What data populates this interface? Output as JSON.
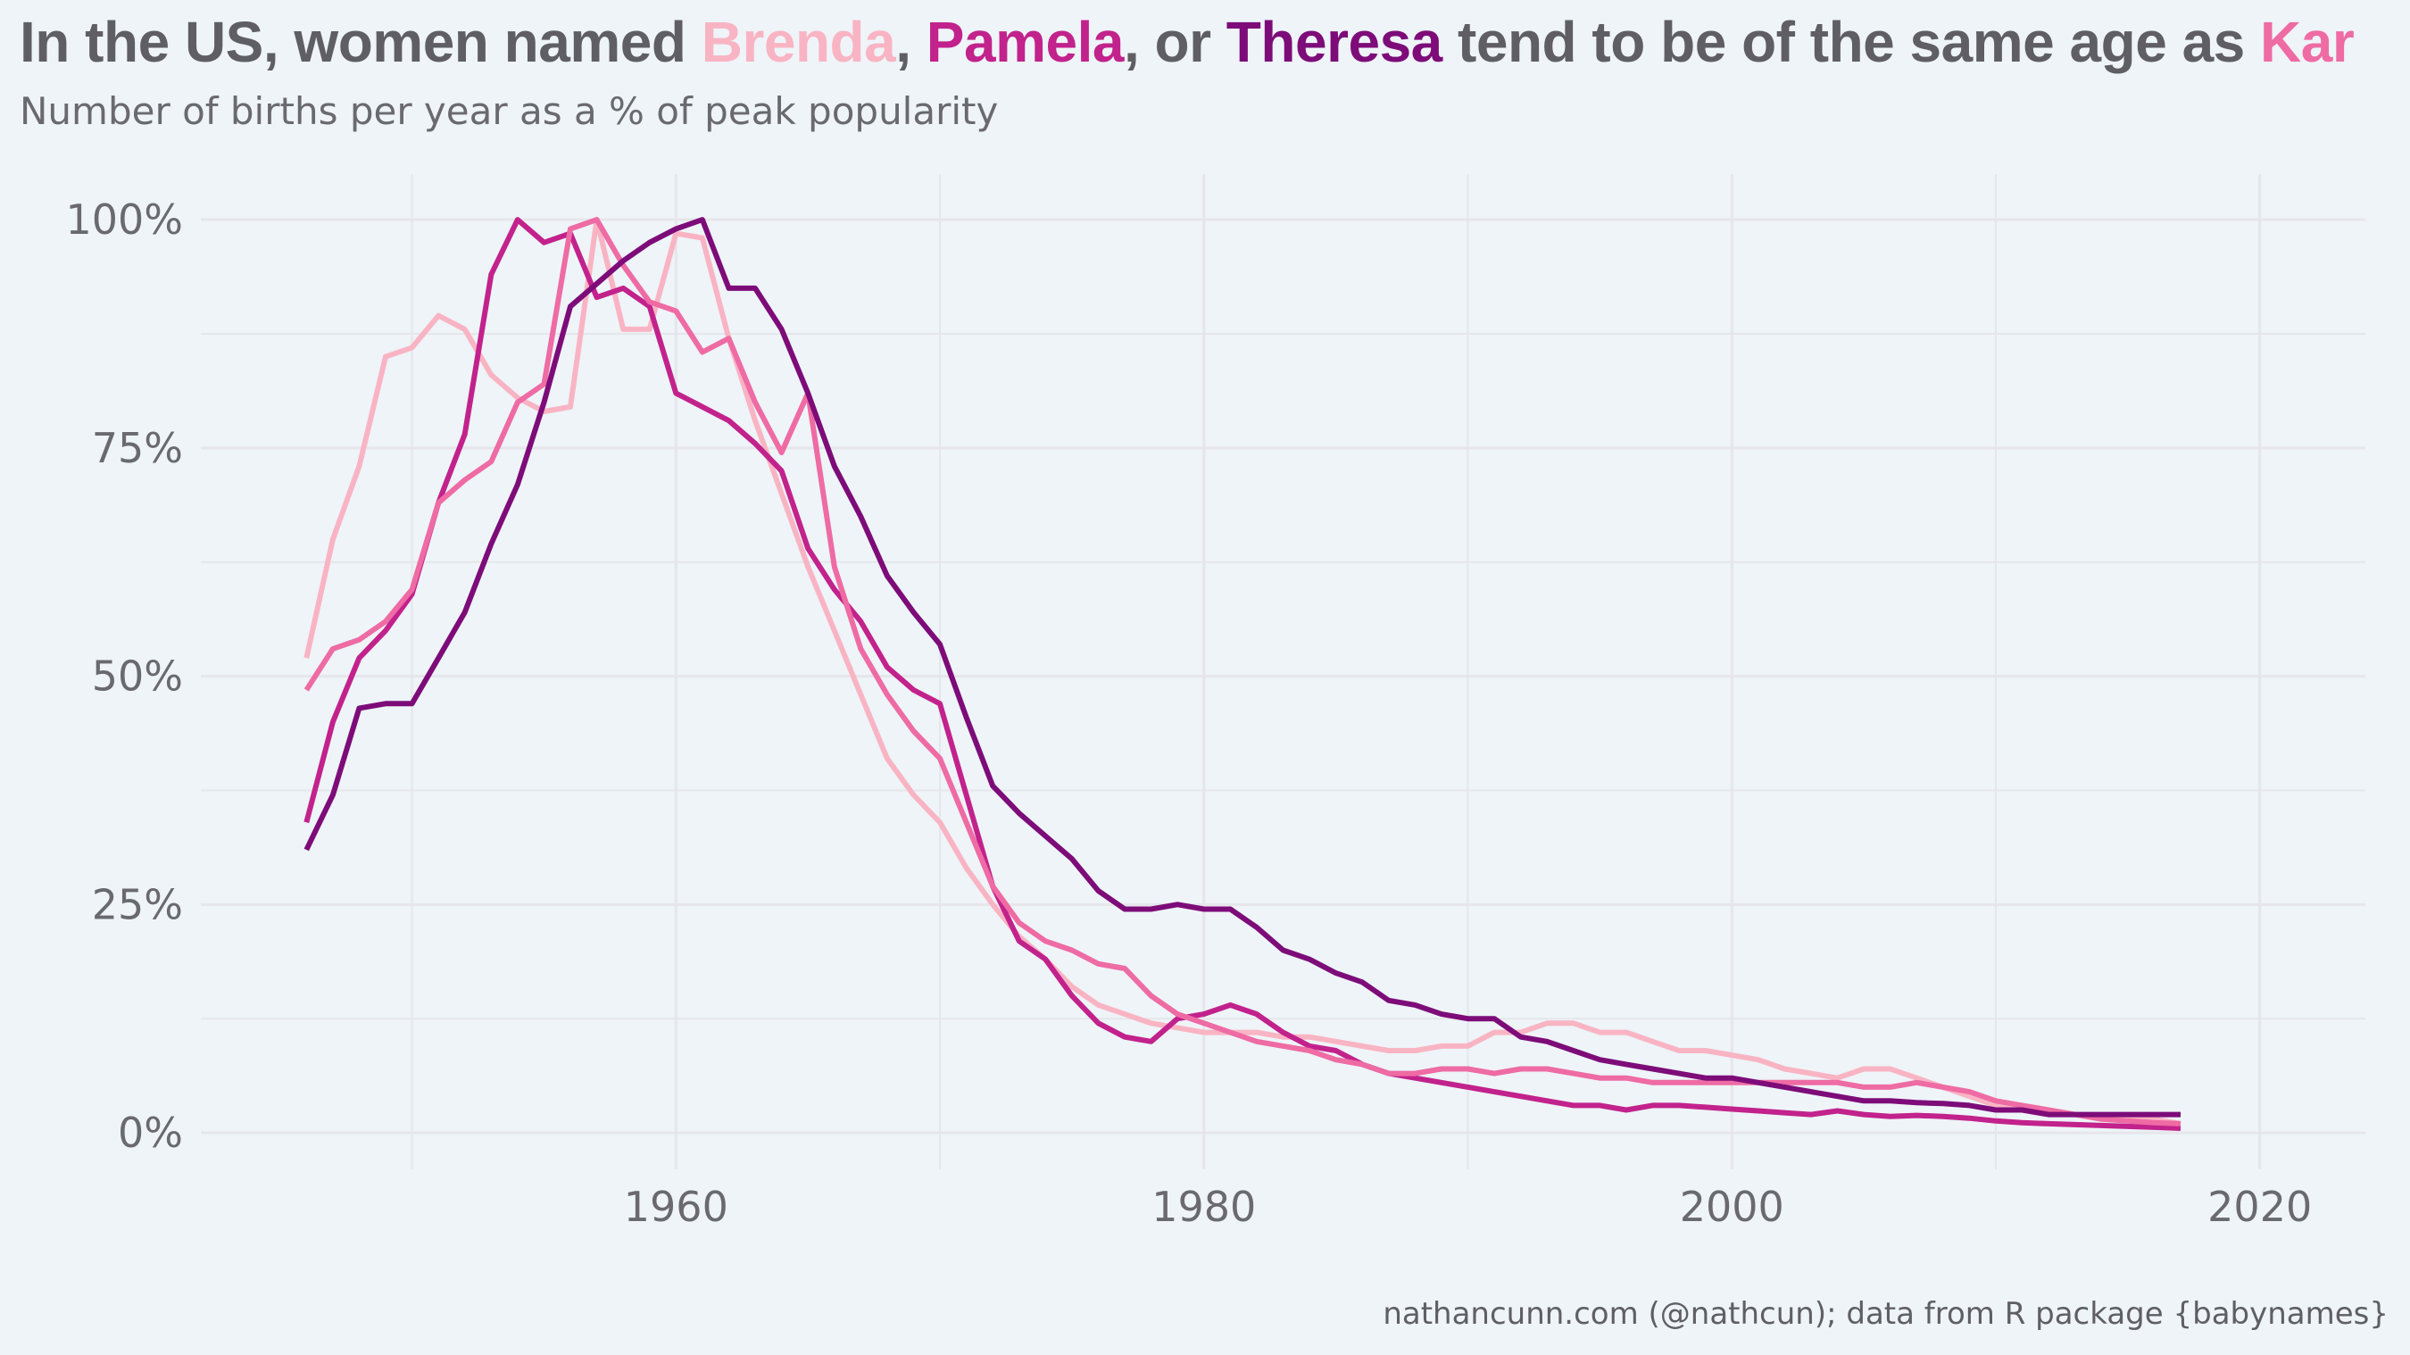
{
  "title": {
    "prefix": "In the US, women named ",
    "name1": "Brenda",
    "sep1": ", ",
    "name2": "Pamela",
    "sep2": ", or ",
    "name3": "Theresa",
    "middle": " tend to be of the same age as ",
    "name4": "Kar"
  },
  "subtitle": "Number of births per year as a % of peak popularity",
  "caption": "nathancunn.com (@nathcun); data from R package {babynames}",
  "colors": {
    "background": "#eef4f8",
    "grid": "#e6e6ea",
    "title_text": "#5f5f63",
    "Brenda": "#f9b4c4",
    "Pamela": "#c2228c",
    "Theresa": "#7d0c79",
    "Karen": "#ee6ba4"
  },
  "chart_data": {
    "type": "line",
    "title": "In the US, women named Brenda, Pamela, or Theresa tend to be of the same age as Kar",
    "subtitle": "Number of births per year as a % of peak popularity",
    "xlabel": "",
    "ylabel": "",
    "xlim": [
      1942,
      2024
    ],
    "ylim": [
      -4,
      105
    ],
    "x_ticks": [
      1960,
      1980,
      2000,
      2020
    ],
    "y_ticks": [
      0,
      25,
      50,
      75,
      100
    ],
    "y_tick_labels": [
      "0%",
      "25%",
      "50%",
      "75%",
      "100%"
    ],
    "x_tick_labels": [
      "1960",
      "1980",
      "2000",
      "2020"
    ],
    "grid": true,
    "legend": "none (names colored in title)",
    "x": [
      1946,
      1947,
      1948,
      1949,
      1950,
      1951,
      1952,
      1953,
      1954,
      1955,
      1956,
      1957,
      1958,
      1959,
      1960,
      1961,
      1962,
      1963,
      1964,
      1965,
      1966,
      1967,
      1968,
      1969,
      1970,
      1971,
      1972,
      1973,
      1974,
      1975,
      1976,
      1977,
      1978,
      1979,
      1980,
      1981,
      1982,
      1983,
      1984,
      1985,
      1986,
      1987,
      1988,
      1989,
      1990,
      1991,
      1992,
      1993,
      1994,
      1995,
      1996,
      1997,
      1998,
      1999,
      2000,
      2001,
      2002,
      2003,
      2004,
      2005,
      2006,
      2007,
      2008,
      2009,
      2010,
      2011,
      2012,
      2013,
      2014,
      2015,
      2016,
      2017
    ],
    "series": [
      {
        "name": "Brenda",
        "values": [
          52,
          65,
          73,
          85,
          86,
          89.5,
          88,
          83,
          80.5,
          79,
          79.5,
          100,
          88,
          88,
          98.5,
          98,
          87,
          78,
          70,
          62,
          55,
          48,
          41,
          37,
          34,
          29,
          25,
          21.5,
          19,
          16,
          14,
          13,
          12,
          11.5,
          11,
          11,
          11,
          10.5,
          10.5,
          10,
          9.5,
          9,
          9,
          9.5,
          9.5,
          11,
          11,
          12,
          12,
          11,
          11,
          10,
          9,
          9,
          8.5,
          8,
          7,
          6.5,
          6,
          7,
          7,
          6,
          5,
          4,
          3,
          2.5,
          2,
          2,
          1.5,
          1.5,
          1.5,
          1
        ]
      },
      {
        "name": "Pamela",
        "values": [
          34,
          45,
          52,
          55,
          59,
          69,
          76.5,
          94,
          100,
          97.5,
          98.5,
          91.5,
          92.5,
          90.5,
          81,
          79.5,
          78,
          75.5,
          72.5,
          64,
          59.5,
          56,
          51,
          48.5,
          47,
          37,
          27,
          21,
          19,
          15,
          12,
          10.5,
          10,
          12.5,
          13,
          14,
          13,
          11,
          9.5,
          9,
          7.5,
          6.5,
          6,
          5.5,
          5,
          4.5,
          4,
          3.5,
          3,
          3,
          2.5,
          3,
          3,
          2.8,
          2.6,
          2.4,
          2.2,
          2,
          2.4,
          2,
          1.8,
          1.9,
          1.8,
          1.6,
          1.3,
          1.1,
          1,
          0.9,
          0.8,
          0.7,
          0.6,
          0.5
        ]
      },
      {
        "name": "Karen",
        "values": [
          48.5,
          53,
          54,
          56,
          59.5,
          69,
          71.5,
          73.5,
          80,
          82,
          99,
          100,
          95,
          91,
          90,
          85.5,
          87,
          80,
          74.5,
          81,
          62,
          53,
          48,
          44,
          41,
          34,
          27,
          23,
          21,
          20,
          18.5,
          18,
          15,
          13,
          12,
          11,
          10,
          9.5,
          9,
          8,
          7.5,
          6.5,
          6.5,
          7,
          7,
          6.5,
          7,
          7,
          6.5,
          6,
          6,
          5.5,
          5.5,
          5.5,
          5.5,
          5.5,
          5.5,
          5.5,
          5.5,
          5,
          5,
          5.5,
          5,
          4.5,
          3.5,
          3,
          2.5,
          2,
          1.5,
          1.3,
          1.1,
          1
        ]
      },
      {
        "name": "Theresa",
        "values": [
          31,
          37,
          46.5,
          47,
          47,
          52,
          57,
          64.5,
          71,
          80,
          90.5,
          93,
          95.5,
          97.5,
          99,
          100,
          92.5,
          92.5,
          88,
          81,
          73,
          67.5,
          61,
          57,
          53.5,
          45.5,
          38,
          35,
          32.5,
          30,
          26.5,
          24.5,
          24.5,
          25,
          24.5,
          24.5,
          22.5,
          20,
          19,
          17.5,
          16.5,
          14.5,
          14,
          13,
          12.5,
          12.5,
          10.5,
          10,
          9,
          8,
          7.5,
          7,
          6.5,
          6,
          6,
          5.5,
          5,
          4.5,
          4,
          3.5,
          3.5,
          3.3,
          3.2,
          3,
          2.5,
          2.5,
          2,
          2,
          2,
          2,
          2,
          2
        ]
      }
    ]
  }
}
